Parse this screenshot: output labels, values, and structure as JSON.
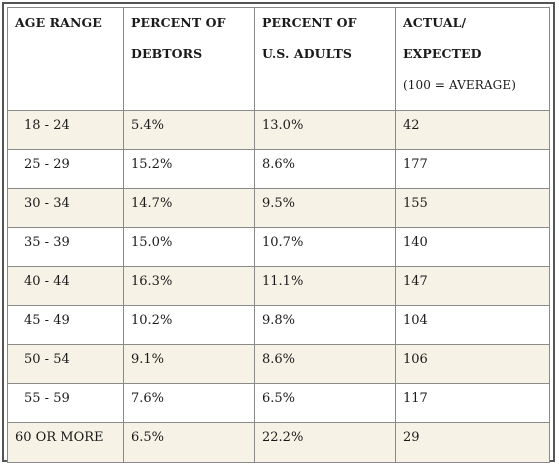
{
  "table": {
    "headers": [
      {
        "lines": [
          "AGE RANGE"
        ]
      },
      {
        "lines": [
          "PERCENT OF",
          "DEBTORS"
        ]
      },
      {
        "lines": [
          "PERCENT OF",
          "U.S. ADULTS"
        ]
      },
      {
        "lines": [
          "ACTUAL/",
          "EXPECTED",
          "(100 = AVERAGE)"
        ]
      }
    ],
    "rows": [
      {
        "age": "18 - 24",
        "debtors": "5.4%",
        "adults": "13.0%",
        "ratio": "42"
      },
      {
        "age": "25 - 29",
        "debtors": "15.2%",
        "adults": "8.6%",
        "ratio": "177"
      },
      {
        "age": "30 - 34",
        "debtors": "14.7%",
        "adults": "9.5%",
        "ratio": "155"
      },
      {
        "age": "35 - 39",
        "debtors": "15.0%",
        "adults": "10.7%",
        "ratio": "140"
      },
      {
        "age": "40 - 44",
        "debtors": "16.3%",
        "adults": "11.1%",
        "ratio": "147"
      },
      {
        "age": "45 - 49",
        "debtors": "10.2%",
        "adults": "9.8%",
        "ratio": "104"
      },
      {
        "age": "50 - 54",
        "debtors": "9.1%",
        "adults": "8.6%",
        "ratio": "106"
      },
      {
        "age": "55 - 59",
        "debtors": "7.6%",
        "adults": "6.5%",
        "ratio": "117"
      },
      {
        "age": "60 OR MORE",
        "debtors": "6.5%",
        "adults": "22.2%",
        "ratio": "29"
      }
    ]
  },
  "colors": {
    "shaded_row": "#f6f2e6",
    "plain_row": "#ffffff",
    "border": "#8a8a8a",
    "frame": "#555555"
  }
}
